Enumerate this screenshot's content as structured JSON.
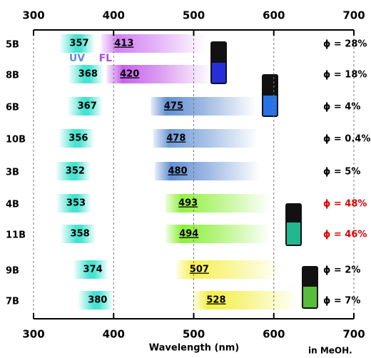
{
  "chart_data": {
    "type": "band",
    "x_label": "Wavelength (nm)",
    "note": "in MeOH.",
    "xlim": [
      300,
      700
    ],
    "xticks": [
      300,
      400,
      500,
      600,
      700
    ],
    "grid": true,
    "categories": [
      "5B",
      "8B",
      "6B",
      "10B",
      "3B",
      "4B",
      "11B",
      "9B",
      "7B"
    ],
    "series": [
      {
        "name": "UV",
        "color": "#5b8fd8",
        "band_colors": [
          "#33e0cc",
          "#33e0cc",
          "#33e0cc",
          "#33e0cc",
          "#33e0cc",
          "#33e0cc",
          "#33e0cc",
          "#33e0cc",
          "#33e0cc"
        ],
        "values": [
          357,
          368,
          367,
          356,
          352,
          353,
          358,
          374,
          380
        ]
      },
      {
        "name": "FL",
        "color": "#a64fd6",
        "band_colors": [
          "#d07af0",
          "#c35ae8",
          "#5a8ad0",
          "#6a96d6",
          "#5a8ad0",
          "#8ef03a",
          "#86ee30",
          "#f4f04a",
          "#f2ee3a"
        ],
        "values": [
          413,
          420,
          475,
          478,
          480,
          493,
          494,
          507,
          528
        ]
      }
    ],
    "quantum_yield_labels": [
      "ϕ = 28%",
      "ϕ = 18%",
      "ϕ = 4%",
      "ϕ = 0.4%",
      "ϕ = 5%",
      "ϕ = 48%",
      "ϕ = 46%",
      "ϕ = 2%",
      "ϕ = 7%"
    ],
    "quantum_yield_colors": [
      "#000000",
      "#000000",
      "#000000",
      "#000000",
      "#000000",
      "#e00000",
      "#e00000",
      "#000000",
      "#000000"
    ]
  }
}
